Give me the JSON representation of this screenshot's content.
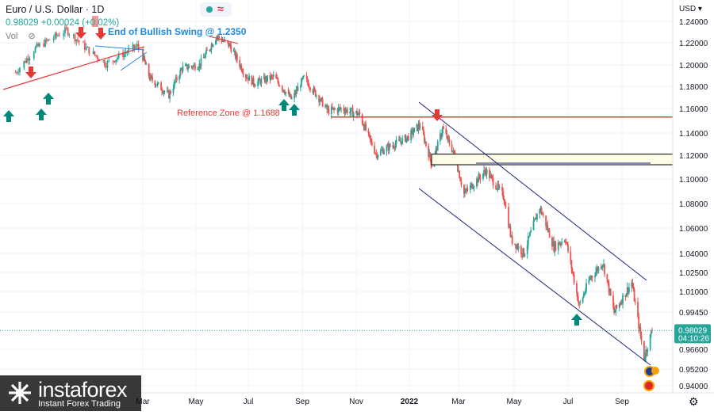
{
  "legend": {
    "symbol": "Euro / U.S. Dollar · 1D",
    "price_change": "0.98029 +0.00024 (+0.02%)",
    "vol_label": "Vol"
  },
  "price_axis": {
    "currency": "USD",
    "current_price": "0.98029",
    "countdown": "04:10:26"
  },
  "watermark": {
    "brand": "instaforex",
    "tagline": "Instant Forex Trading"
  },
  "chart_data": {
    "type": "candlestick",
    "instrument": "Euro / U.S. Dollar",
    "timeframe": "1D",
    "last_price": 0.98029,
    "change": 0.00024,
    "change_pct": 0.02,
    "y_ticks": [
      1.24,
      1.22,
      1.2,
      1.18,
      1.16,
      1.14,
      1.12,
      1.1,
      1.08,
      1.06,
      1.04,
      1.025,
      1.01,
      0.9945,
      0.966,
      0.952,
      0.94
    ],
    "y_tick_labels": [
      "1.24000",
      "1.22000",
      "1.20000",
      "1.18000",
      "1.16000",
      "1.14000",
      "1.12000",
      "1.10000",
      "1.08000",
      "1.06000",
      "1.04000",
      "1.02500",
      "1.01000",
      "0.99450",
      "0.96600",
      "0.95200",
      "0.94000"
    ],
    "x_ticks": [
      "Mar",
      "May",
      "Jul",
      "Sep",
      "Nov",
      "2022",
      "Mar",
      "May",
      "Jul",
      "Sep"
    ],
    "price_path": [
      [
        "2020-12-01",
        1.193
      ],
      [
        "2020-12-15",
        1.215
      ],
      [
        "2021-01-06",
        1.232
      ],
      [
        "2021-01-20",
        1.215
      ],
      [
        "2021-02-03",
        1.201
      ],
      [
        "2021-02-25",
        1.217
      ],
      [
        "2021-03-09",
        1.188
      ],
      [
        "2021-03-31",
        1.172
      ],
      [
        "2021-04-15",
        1.197
      ],
      [
        "2021-05-05",
        1.2
      ],
      [
        "2021-05-25",
        1.226
      ],
      [
        "2021-06-10",
        1.217
      ],
      [
        "2021-06-28",
        1.19
      ],
      [
        "2021-07-08",
        1.183
      ],
      [
        "2021-07-30",
        1.189
      ],
      [
        "2021-08-20",
        1.168
      ],
      [
        "2021-09-03",
        1.188
      ],
      [
        "2021-09-30",
        1.158
      ],
      [
        "2021-10-15",
        1.16
      ],
      [
        "2021-11-05",
        1.155
      ],
      [
        "2021-11-24",
        1.121
      ],
      [
        "2021-12-10",
        1.128
      ],
      [
        "2021-12-30",
        1.136
      ],
      [
        "2022-01-14",
        1.147
      ],
      [
        "2022-01-28",
        1.112
      ],
      [
        "2022-02-10",
        1.144
      ],
      [
        "2022-02-25",
        1.119
      ],
      [
        "2022-03-07",
        1.088
      ],
      [
        "2022-03-31",
        1.107
      ],
      [
        "2022-04-20",
        1.085
      ],
      [
        "2022-04-28",
        1.051
      ],
      [
        "2022-05-12",
        1.04
      ],
      [
        "2022-05-30",
        1.077
      ],
      [
        "2022-06-15",
        1.045
      ],
      [
        "2022-06-28",
        1.052
      ],
      [
        "2022-07-14",
        0.999
      ],
      [
        "2022-07-26",
        1.02
      ],
      [
        "2022-08-10",
        1.033
      ],
      [
        "2022-08-23",
        0.994
      ],
      [
        "2022-09-12",
        1.017
      ],
      [
        "2022-09-26",
        0.96
      ],
      [
        "2022-10-05",
        0.98
      ]
    ],
    "annotations": [
      {
        "text": "End of Bullish Swing @ 1.2350",
        "color": "#1e88e5"
      },
      {
        "text": "Reference Zone @ 1.1688",
        "color": "#e53935"
      }
    ],
    "reference_line": 1.1531,
    "zone": [
      1.112,
      1.121
    ],
    "channel": {
      "upper": [
        [
          "2022-01-10",
          1.165
        ],
        [
          "2022-09-25",
          1.018
        ]
      ],
      "lower": [
        [
          "2022-01-10",
          1.101
        ],
        [
          "2022-10-01",
          0.955
        ]
      ]
    },
    "grid": true
  }
}
